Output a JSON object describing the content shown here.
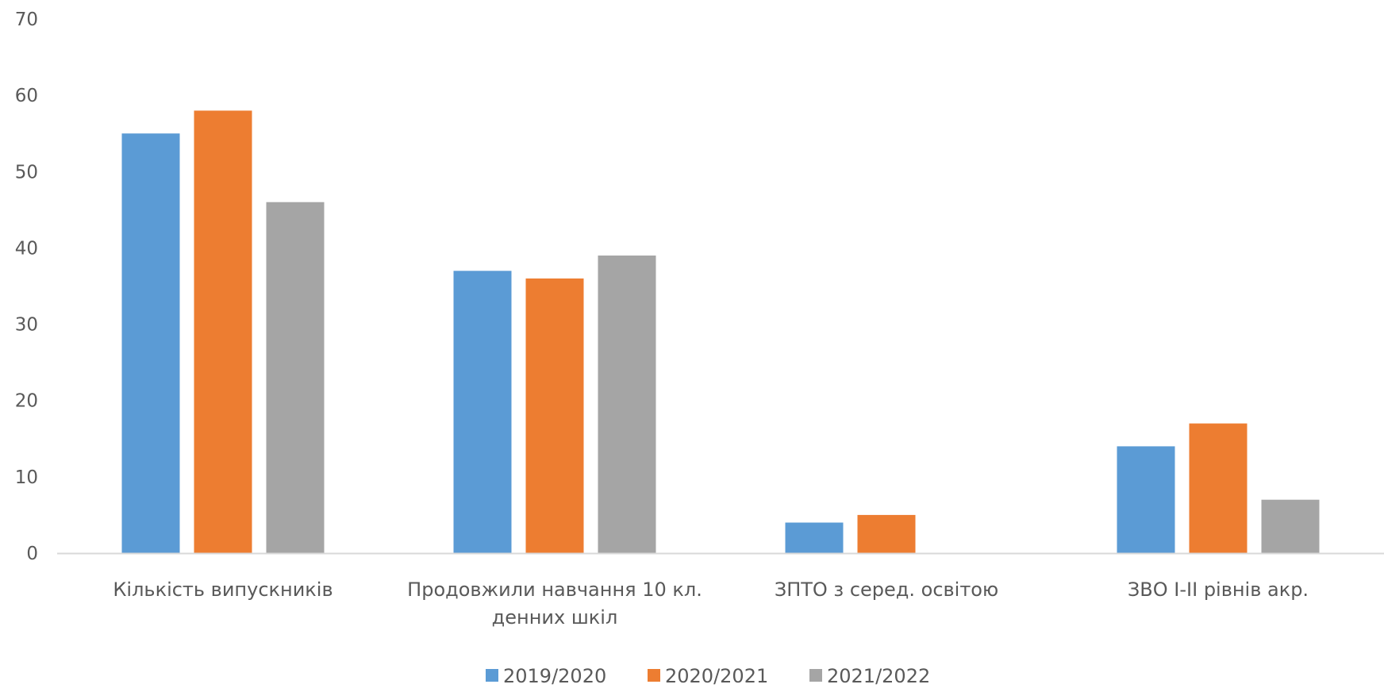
{
  "chart_data": {
    "type": "bar",
    "title": "",
    "xlabel": "",
    "ylabel": "",
    "ylim": [
      0,
      70
    ],
    "y_ticks": [
      0,
      10,
      20,
      30,
      40,
      50,
      60,
      70
    ],
    "grid": false,
    "legend_position": "bottom",
    "categories": [
      [
        "Кількість випускників"
      ],
      [
        "Продовжили навчання 10 кл.",
        "денних шкіл"
      ],
      [
        "ЗПТО з серед. освітою"
      ],
      [
        "ЗВО І-ІІ рівнів акр."
      ]
    ],
    "series": [
      {
        "name": "2019/2020",
        "color": "#5B9BD5",
        "values": [
          55,
          37,
          4,
          14
        ]
      },
      {
        "name": "2020/2021",
        "color": "#ED7D31",
        "values": [
          58,
          36,
          5,
          17
        ]
      },
      {
        "name": "2021/2022",
        "color": "#A5A5A5",
        "values": [
          46,
          39,
          0,
          7
        ]
      }
    ]
  }
}
